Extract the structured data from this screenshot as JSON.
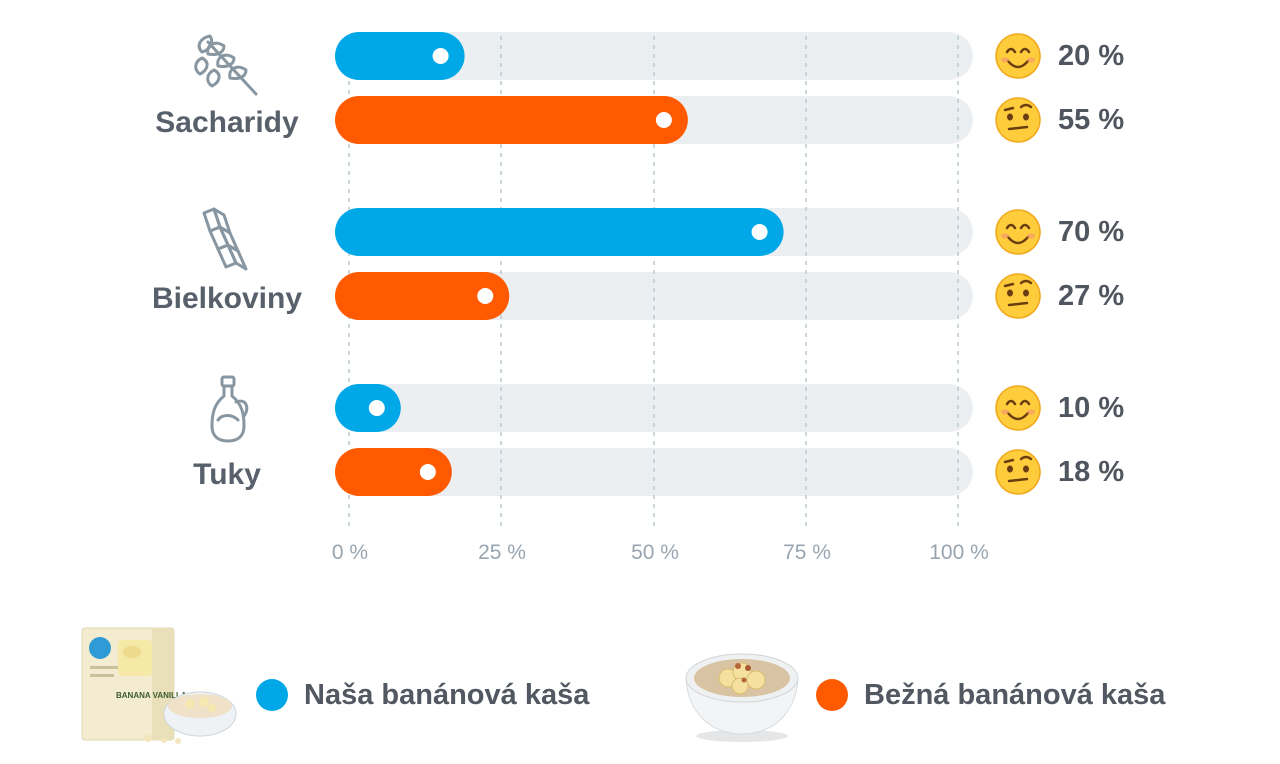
{
  "chart_data": {
    "type": "bar",
    "orientation": "horizontal",
    "categories": [
      "Sacharidy",
      "Bielkoviny",
      "Tuky"
    ],
    "series": [
      {
        "name": "Naša banánová kaša",
        "color": "#00a8e8",
        "values": [
          20,
          70,
          10
        ],
        "value_labels": [
          "20 %",
          "70 %",
          "10 %"
        ],
        "emoji": "smiling-face"
      },
      {
        "name": "Bežná banánová kaša",
        "color": "#ff5a00",
        "values": [
          55,
          27,
          18
        ],
        "value_labels": [
          "55 %",
          "27 %",
          "18 %"
        ],
        "emoji": "raised-eyebrow-face"
      }
    ],
    "xlim": [
      0,
      100
    ],
    "xticks": [
      0,
      25,
      50,
      75,
      100
    ],
    "xtick_labels": [
      "0 %",
      "25 %",
      "50 %",
      "75 %",
      "100 %"
    ],
    "track_color": "#eceff2",
    "grid": "dashed vertical",
    "category_icons": [
      "wheat-icon",
      "fusilli-pasta-icon",
      "oil-bottle-icon"
    ]
  },
  "legend": {
    "items": [
      {
        "label": "Naša banánová kaša",
        "color": "#00a8e8",
        "image": "product-box-banana-vanilla"
      },
      {
        "label": "Bežná banánová kaša",
        "color": "#ff5a00",
        "image": "porridge-bowl"
      }
    ],
    "product_box_text": "BANANA VANILLA"
  }
}
